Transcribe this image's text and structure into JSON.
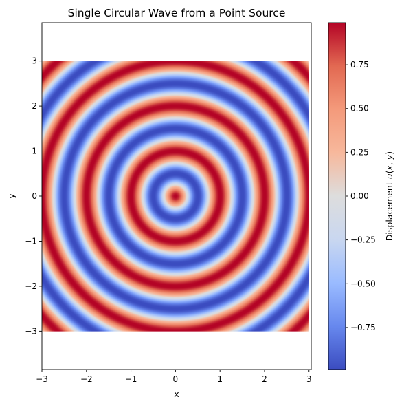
{
  "chart_data": {
    "type": "heatmap",
    "title": "Single Circular Wave from a Point Source",
    "xlabel": "x",
    "ylabel": "y",
    "xlim": [
      -3,
      3.05
    ],
    "ylim": [
      -3.85,
      3.85
    ],
    "data_extent": {
      "x": [
        -3,
        3
      ],
      "y": [
        -3,
        3
      ]
    },
    "function": "u(x,y) = cos(k * sqrt(x^2 + y^2))",
    "source_point": [
      0,
      0
    ],
    "wavenumber_k": 6.2832,
    "value_range": [
      -0.99,
      0.99
    ],
    "colormap": "coolwarm",
    "colormap_stops": [
      "#3b4cc0",
      "#6788ee",
      "#9abbff",
      "#c9d7f0",
      "#dddddd",
      "#f7b89c",
      "#f49a7b",
      "#e26952",
      "#b40426"
    ],
    "xticks": [
      -3,
      -2,
      -1,
      0,
      1,
      2,
      3
    ],
    "xtick_labels": [
      "−3",
      "−2",
      "−1",
      "0",
      "1",
      "2",
      "3"
    ],
    "yticks": [
      -3,
      -2,
      -1,
      0,
      1,
      2,
      3
    ],
    "ytick_labels": [
      "−3",
      "−2",
      "−1",
      "0",
      "1",
      "2",
      "3"
    ],
    "colorbar": {
      "label": "Displacement u(x, y)",
      "label_parts": [
        "Displacement ",
        "u",
        "(",
        "x",
        ", ",
        "y",
        ")"
      ],
      "ticks": [
        -0.75,
        -0.5,
        -0.25,
        0,
        0.25,
        0.5,
        0.75
      ],
      "tick_labels": [
        "−0.75",
        "−0.50",
        "−0.25",
        "0.00",
        "0.25",
        "0.50",
        "0.75"
      ]
    }
  }
}
